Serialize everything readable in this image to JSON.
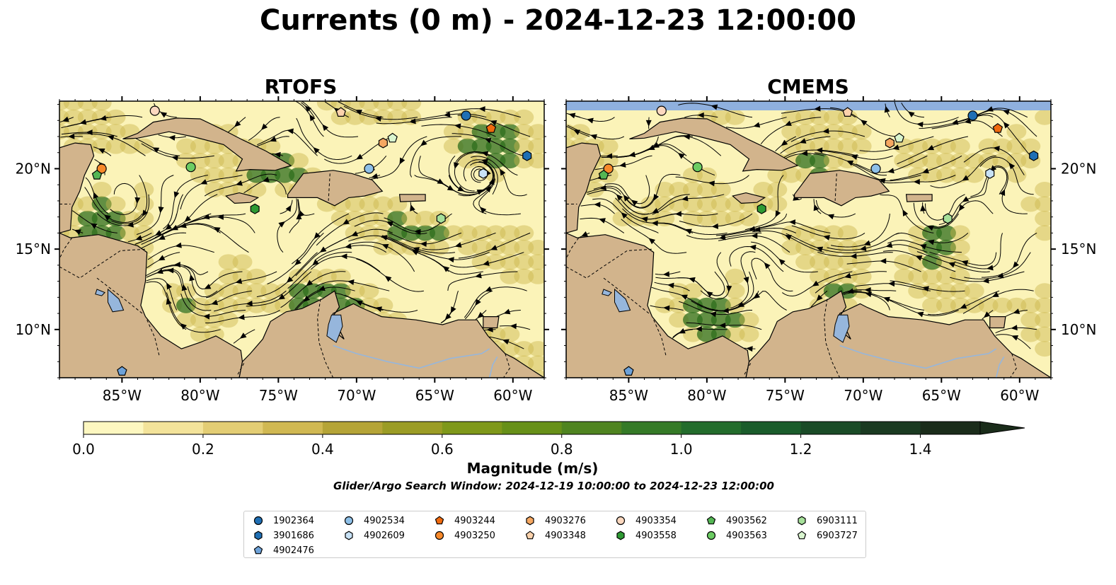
{
  "title": "Currents (0 m) - 2024-12-23 12:00:00",
  "panels": [
    {
      "title": "RTOFS"
    },
    {
      "title": "CMEMS"
    }
  ],
  "map": {
    "lon_range": [
      -89,
      -58
    ],
    "lat_range": [
      7,
      24.2
    ],
    "lon_ticks": [
      "85°W",
      "80°W",
      "75°W",
      "70°W",
      "65°W",
      "60°W"
    ],
    "lat_ticks": [
      "20°N",
      "15°N",
      "10°N"
    ],
    "colors": {
      "land": "#d2b48c",
      "ocean_low": "#fbf3b8",
      "ocean_mid": "#c9b54c",
      "ocean_high": "#2f6e1c",
      "lakes": "#96b6dc"
    }
  },
  "colorbar": {
    "label": "Magnitude (m/s)",
    "ticks": [
      "0.0",
      "0.2",
      "0.4",
      "0.6",
      "0.8",
      "1.0",
      "1.2",
      "1.4"
    ],
    "range": [
      0.0,
      1.5
    ],
    "colors": [
      "#fdf7c0",
      "#f3e39a",
      "#e3cd74",
      "#d0b852",
      "#b5a437",
      "#9b9c25",
      "#7f981a",
      "#679018",
      "#4f8420",
      "#357a27",
      "#236c2c",
      "#1a5c2b",
      "#1a4b27",
      "#1a3a21",
      "#1a2c1a"
    ],
    "extend": "max"
  },
  "search_window": "Glider/Argo Search Window: 2024-12-19 10:00:00 to 2024-12-23 12:00:00",
  "floats": [
    {
      "id": "1902364",
      "marker": "circle",
      "color": "#1f6fb4",
      "lon": -63,
      "lat": 23.3
    },
    {
      "id": "3901686",
      "marker": "hexagon",
      "color": "#1f6fb4",
      "lon": -59.1,
      "lat": 20.8
    },
    {
      "id": "4902476",
      "marker": "pentagon",
      "color": "#6ea2d8",
      "lon": -85,
      "lat": 7.4
    },
    {
      "id": "4902534",
      "marker": "circle",
      "color": "#8ec0e8",
      "lon": -69.2,
      "lat": 20
    },
    {
      "id": "4902609",
      "marker": "hexagon",
      "color": "#c8e2f6",
      "lon": -61.9,
      "lat": 19.7
    },
    {
      "id": "4903244",
      "marker": "pentagon",
      "color": "#f06a0e",
      "lon": -61.4,
      "lat": 22.5
    },
    {
      "id": "4903250",
      "marker": "circle",
      "color": "#f7892a",
      "lon": -86.3,
      "lat": 20
    },
    {
      "id": "4903276",
      "marker": "hexagon",
      "color": "#f6a862",
      "lon": -68.3,
      "lat": 21.6
    },
    {
      "id": "4903348",
      "marker": "pentagon",
      "color": "#fcd2ac",
      "lon": -71,
      "lat": 23.5
    },
    {
      "id": "4903354",
      "marker": "circle",
      "color": "#fcd8bf",
      "lon": -82.9,
      "lat": 23.6
    },
    {
      "id": "4903558",
      "marker": "hexagon",
      "color": "#2e9a33",
      "lon": -76.5,
      "lat": 17.5
    },
    {
      "id": "4903562",
      "marker": "pentagon",
      "color": "#54b654",
      "lon": -86.6,
      "lat": 19.6
    },
    {
      "id": "4903563",
      "marker": "circle",
      "color": "#6ccc63",
      "lon": -80.6,
      "lat": 20.1
    },
    {
      "id": "6903111",
      "marker": "hexagon",
      "color": "#a6e09a",
      "lon": -64.6,
      "lat": 16.9
    },
    {
      "id": "6903727",
      "marker": "pentagon",
      "color": "#d9f5cf",
      "lon": -67.7,
      "lat": 21.9
    }
  ]
}
